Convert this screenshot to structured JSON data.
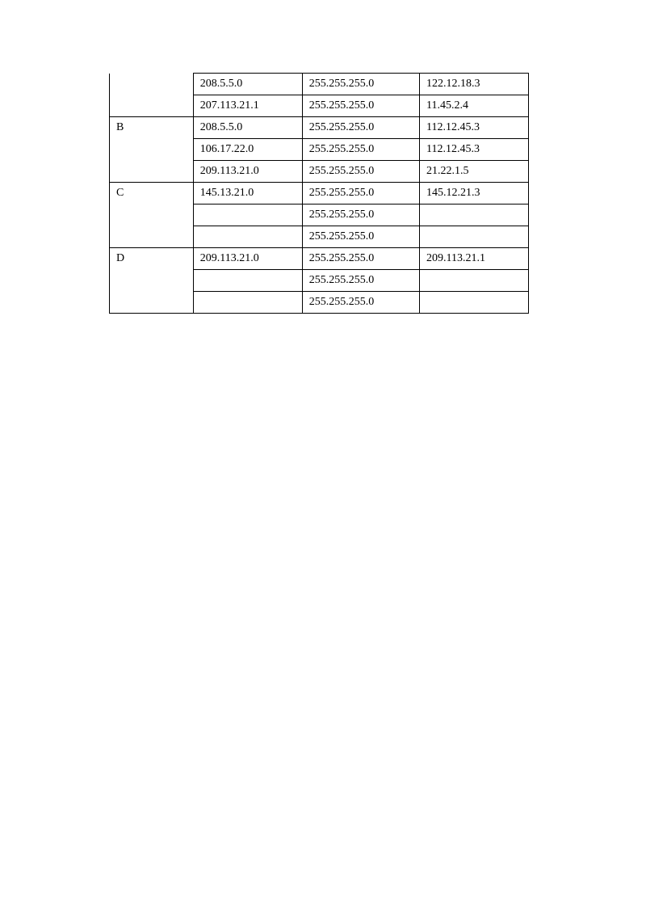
{
  "table": {
    "rows": [
      {
        "label": "",
        "network": "208.5.5.0",
        "mask": "255.255.255.0",
        "gateway": "122.12.18.3",
        "labelClass": "no-top-bottom"
      },
      {
        "label": "",
        "network": "207.113.21.1",
        "mask": "255.255.255.0",
        "gateway": "11.45.2.4",
        "labelClass": "no-top"
      },
      {
        "label": "B",
        "network": "208.5.5.0",
        "mask": "255.255.255.0",
        "gateway": "112.12.45.3",
        "labelClass": "no-bottom"
      },
      {
        "label": "",
        "network": "106.17.22.0",
        "mask": "255.255.255.0",
        "gateway": "112.12.45.3",
        "labelClass": "no-top-bottom"
      },
      {
        "label": "",
        "network": "209.113.21.0",
        "mask": "255.255.255.0",
        "gateway": "21.22.1.5",
        "labelClass": "no-top"
      },
      {
        "label": "C",
        "network": "145.13.21.0",
        "mask": "255.255.255.0",
        "gateway": "145.12.21.3",
        "labelClass": "no-bottom"
      },
      {
        "label": "",
        "network": "",
        "mask": "255.255.255.0",
        "gateway": "",
        "labelClass": "no-top-bottom"
      },
      {
        "label": "",
        "network": "",
        "mask": "255.255.255.0",
        "gateway": "",
        "labelClass": "no-top"
      },
      {
        "label": "D",
        "network": "209.113.21.0",
        "mask": "255.255.255.0",
        "gateway": "209.113.21.1",
        "labelClass": "no-bottom"
      },
      {
        "label": "",
        "network": "",
        "mask": "255.255.255.0",
        "gateway": "",
        "labelClass": "no-top-bottom"
      },
      {
        "label": "",
        "network": "",
        "mask": "255.255.255.0",
        "gateway": "",
        "labelClass": "no-top"
      }
    ]
  }
}
